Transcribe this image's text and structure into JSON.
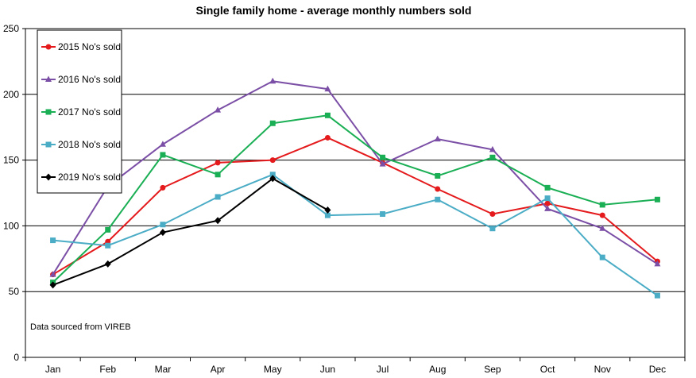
{
  "chart_data": {
    "type": "line",
    "title": "Single family home - average monthly numbers sold",
    "xlabel": "",
    "ylabel": "",
    "categories": [
      "Jan",
      "Feb",
      "Mar",
      "Apr",
      "May",
      "Jun",
      "Jul",
      "Aug",
      "Sep",
      "Oct",
      "Nov",
      "Dec"
    ],
    "ylim": [
      0,
      250
    ],
    "yticks": [
      0,
      50,
      100,
      150,
      200,
      250
    ],
    "grid": "horizontal",
    "legend_position": "top-left",
    "note": "Data sourced from VIREB",
    "series": [
      {
        "name": "2015 No's sold",
        "color": "#e41a1c",
        "marker": "circle",
        "values": [
          63,
          88,
          129,
          148,
          150,
          167,
          148,
          128,
          109,
          117,
          108,
          73
        ]
      },
      {
        "name": "2016 No's sold",
        "color": "#7b4fa6",
        "marker": "triangle",
        "values": [
          63,
          130,
          162,
          188,
          210,
          204,
          147,
          166,
          158,
          113,
          98,
          71
        ]
      },
      {
        "name": "2017 No's sold",
        "color": "#1aaf54",
        "marker": "square",
        "values": [
          57,
          97,
          154,
          139,
          178,
          184,
          152,
          138,
          152,
          129,
          116,
          120
        ]
      },
      {
        "name": "2018 No's sold",
        "color": "#4bacc6",
        "marker": "square",
        "values": [
          89,
          85,
          101,
          122,
          139,
          108,
          109,
          120,
          98,
          121,
          76,
          47
        ]
      },
      {
        "name": "2019 No's sold",
        "color": "#000000",
        "marker": "diamond",
        "values": [
          55,
          71,
          95,
          104,
          136,
          112,
          null,
          null,
          null,
          null,
          null,
          null
        ]
      }
    ]
  }
}
